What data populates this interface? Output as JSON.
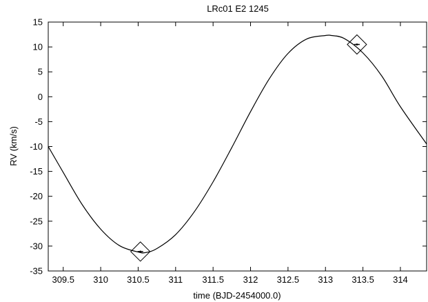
{
  "chart_data": {
    "type": "line",
    "title": "LRc01 E2 1245",
    "xlabel": "time (BJD-2454000.0)",
    "ylabel": "RV (km/s)",
    "xlim": [
      309.3,
      314.35
    ],
    "ylim": [
      -35,
      15
    ],
    "xticks": [
      309.5,
      310,
      310.5,
      311,
      311.5,
      312,
      312.5,
      313,
      313.5,
      314
    ],
    "yticks": [
      15,
      10,
      5,
      0,
      -5,
      -10,
      -15,
      -20,
      -25,
      -30,
      -35
    ],
    "grid": false,
    "legend": "none",
    "colors": {
      "line": "#000000",
      "marker": "#000000"
    },
    "series": [
      {
        "type": "line",
        "x": [
          309.3,
          309.5,
          309.75,
          310.0,
          310.25,
          310.5,
          310.6,
          310.75,
          311.0,
          311.25,
          311.5,
          311.75,
          312.0,
          312.25,
          312.5,
          312.75,
          313.0,
          313.08,
          313.25,
          313.5,
          313.75,
          314.0,
          314.35
        ],
        "y": [
          -10.0,
          -15.2,
          -21.6,
          -26.6,
          -29.9,
          -31.2,
          -31.3,
          -30.5,
          -27.7,
          -23.1,
          -17.1,
          -10.2,
          -3.0,
          3.6,
          8.7,
          11.6,
          12.3,
          12.3,
          11.7,
          8.8,
          4.2,
          -2.0,
          -9.5
        ]
      },
      {
        "type": "scatter",
        "marker": "diamond",
        "x": [
          310.53,
          313.42
        ],
        "y": [
          -31.1,
          10.5
        ]
      }
    ]
  }
}
